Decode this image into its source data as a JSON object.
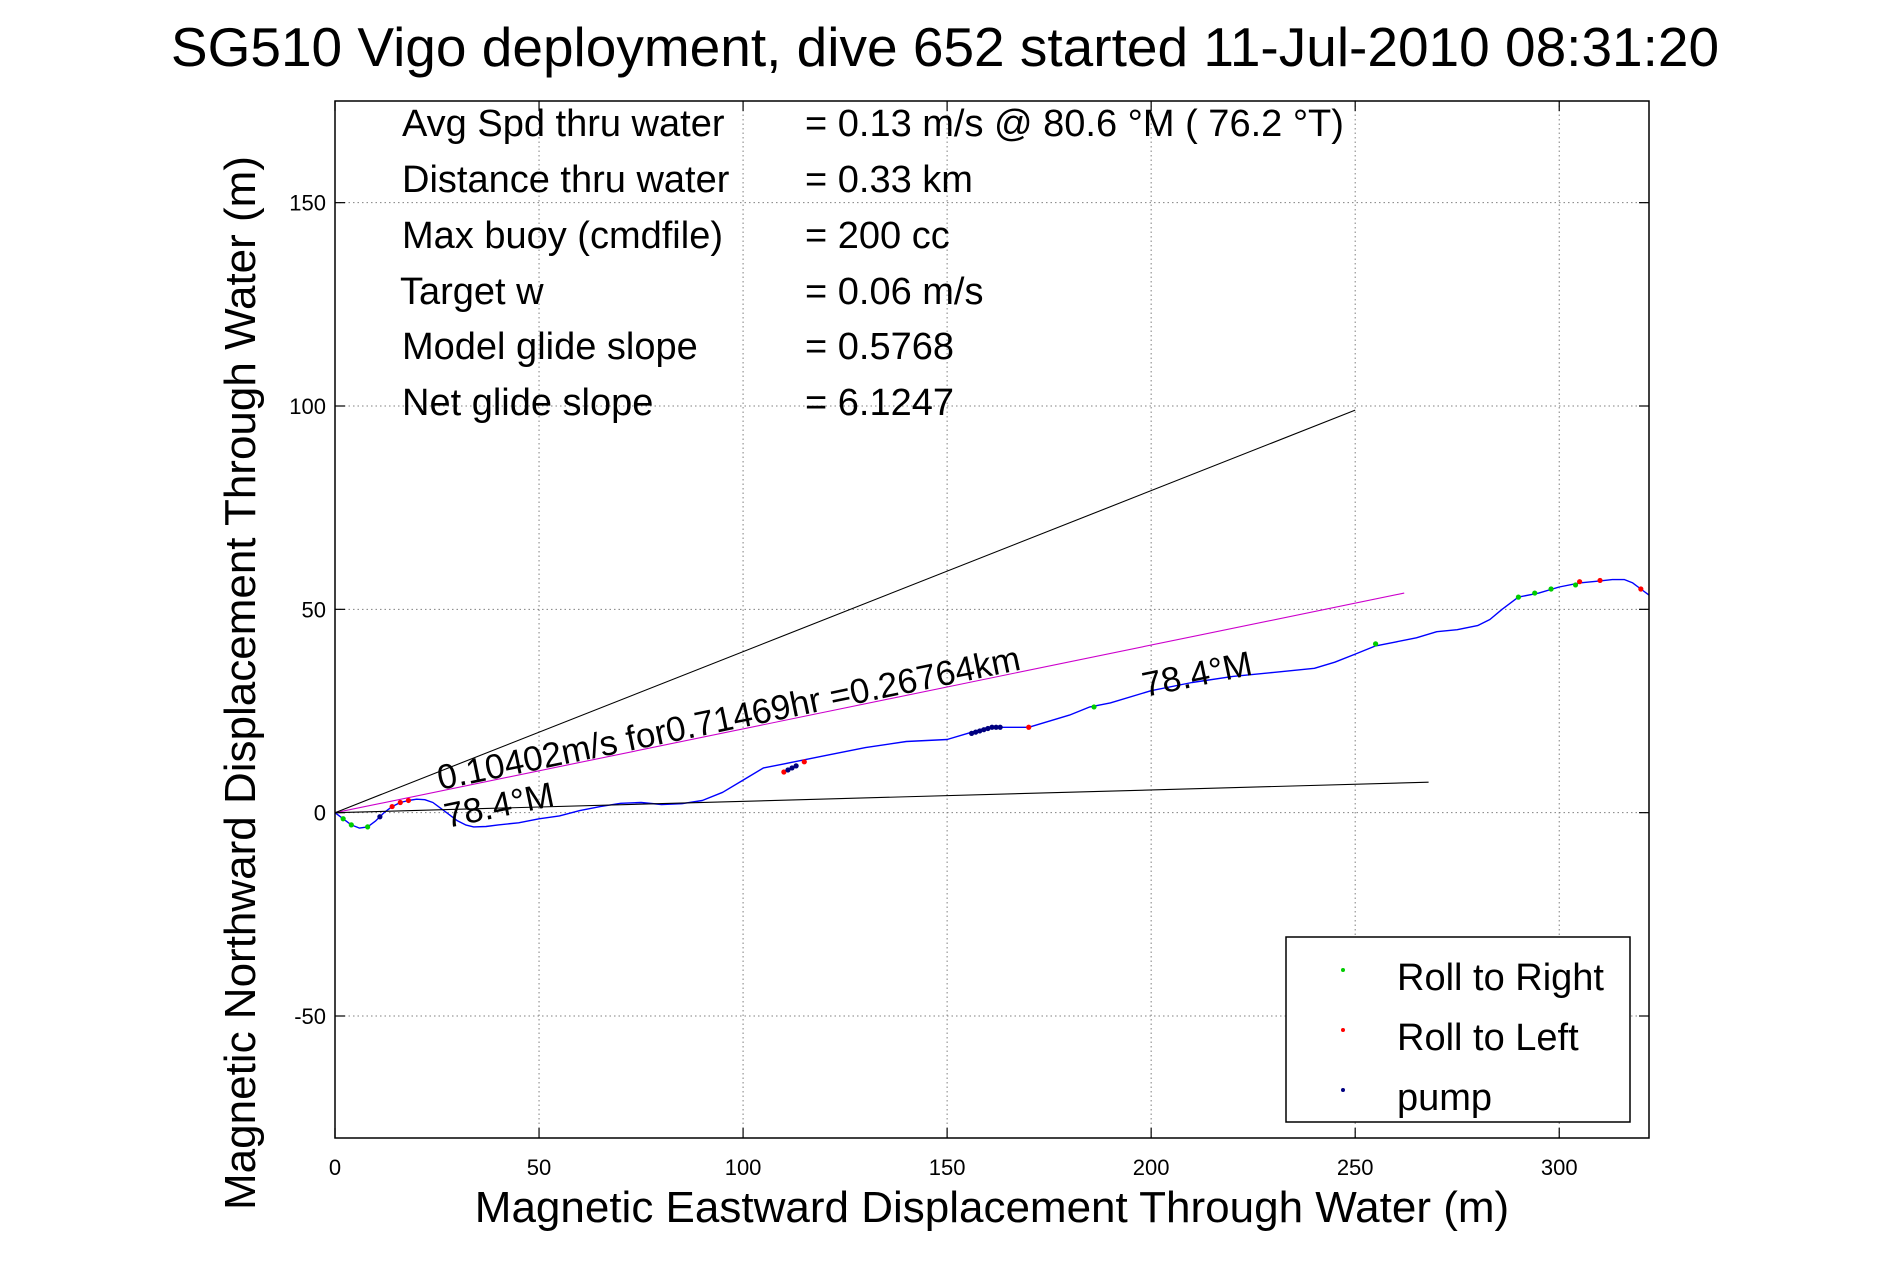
{
  "chart_data": {
    "type": "line",
    "title": "SG510 Vigo deployment, dive 652 started 11-Jul-2010 08:31:20",
    "xlabel": "Magnetic Eastward Displacement Through Water (m)",
    "ylabel": "Magnetic Northward Displacement Through Water (m)",
    "xlim": [
      0,
      322
    ],
    "ylim": [
      -80,
      175
    ],
    "xticks": [
      0,
      50,
      100,
      150,
      200,
      250,
      300
    ],
    "yticks": [
      -50,
      0,
      50,
      100,
      150
    ],
    "grid": true,
    "legend_position": "bottom-right",
    "legend": [
      {
        "label": "Roll to Right",
        "color": "#00cc00"
      },
      {
        "label": "Roll to Left",
        "color": "#ff0000"
      },
      {
        "label": "pump",
        "color": "#000080"
      }
    ],
    "stats": [
      {
        "label": "Avg Spd thru water",
        "value": "=  0.13 m/s @  80.6 °M ( 76.2 °T)"
      },
      {
        "label": "Distance thru water",
        "value": "=  0.33 km"
      },
      {
        "label": "Max buoy (cmdfile)",
        "value": "= 200 cc"
      },
      {
        "label": "Target w",
        "value": "= 0.06 m/s"
      },
      {
        "label": "Model glide slope",
        "value": "= 0.5768"
      },
      {
        "label": "Net glide slope",
        "value": "= 6.1247"
      }
    ],
    "annotations": [
      {
        "text": "0.10402m/s for0.71469hr =0.26764km"
      },
      {
        "text": "78.4°M"
      },
      {
        "text": "78.4°M"
      }
    ],
    "series": [
      {
        "color": "#0000ff",
        "x": [
          0,
          2,
          4,
          6,
          8,
          10,
          12,
          14,
          16,
          18,
          20,
          22,
          24,
          26,
          28,
          30,
          32,
          34,
          37,
          40,
          45,
          50,
          55,
          60,
          65,
          70,
          75,
          80,
          85,
          90,
          95,
          100,
          105,
          110,
          115,
          120,
          130,
          140,
          150,
          155,
          160,
          165,
          170,
          175,
          180,
          185,
          190,
          200,
          210,
          220,
          230,
          240,
          245,
          250,
          255,
          260,
          265,
          270,
          275,
          280,
          283,
          286,
          290,
          295,
          300,
          305,
          310,
          313,
          316,
          318,
          320,
          322
        ],
        "y": [
          0,
          -1.5,
          -3,
          -3.8,
          -3.5,
          -2,
          0,
          1.5,
          2.5,
          3,
          3.3,
          3.2,
          2.5,
          1,
          -0.5,
          -2,
          -3,
          -3.5,
          -3.4,
          -3,
          -2.5,
          -1.5,
          -0.8,
          0.5,
          1.5,
          2.3,
          2.5,
          2,
          2.2,
          3,
          5,
          8,
          11,
          12,
          13,
          14,
          16,
          17.5,
          18,
          19.5,
          21,
          21,
          21,
          22.5,
          24,
          26,
          27,
          30,
          32,
          33.5,
          34.5,
          35.5,
          37,
          39,
          41,
          42,
          43,
          44.5,
          45,
          46,
          47.5,
          50,
          53,
          54,
          55.5,
          56.5,
          57,
          57.3,
          57.3,
          56.5,
          55,
          53.5
        ]
      },
      {
        "color": "#cc00cc",
        "x": [
          0,
          262
        ],
        "y": [
          0,
          54
        ]
      },
      {
        "color": "#000000",
        "x": [
          0,
          250
        ],
        "y": [
          0,
          99
        ]
      },
      {
        "color": "#000000",
        "x": [
          0,
          268
        ],
        "y": [
          0,
          7.5
        ]
      }
    ],
    "markers": [
      {
        "kind": "right",
        "color": "#00cc00",
        "x": [
          2,
          4,
          8,
          186,
          255,
          290,
          294,
          298,
          304
        ],
        "y": [
          -1.5,
          -3,
          -3.5,
          26,
          41.5,
          53,
          54,
          55,
          56
        ]
      },
      {
        "kind": "left",
        "color": "#ff0000",
        "x": [
          14,
          16,
          18,
          110,
          115,
          170,
          305,
          310,
          320
        ],
        "y": [
          1.5,
          2.5,
          3,
          10,
          12.5,
          21,
          56.8,
          57.1,
          55
        ]
      },
      {
        "kind": "pump",
        "color": "#000080",
        "x": [
          11,
          111,
          112,
          113,
          156,
          157,
          158,
          159,
          160,
          161,
          162,
          163
        ],
        "y": [
          -1,
          10.5,
          11,
          11.5,
          19.5,
          19.8,
          20.1,
          20.4,
          20.7,
          21,
          21,
          21
        ]
      }
    ]
  }
}
